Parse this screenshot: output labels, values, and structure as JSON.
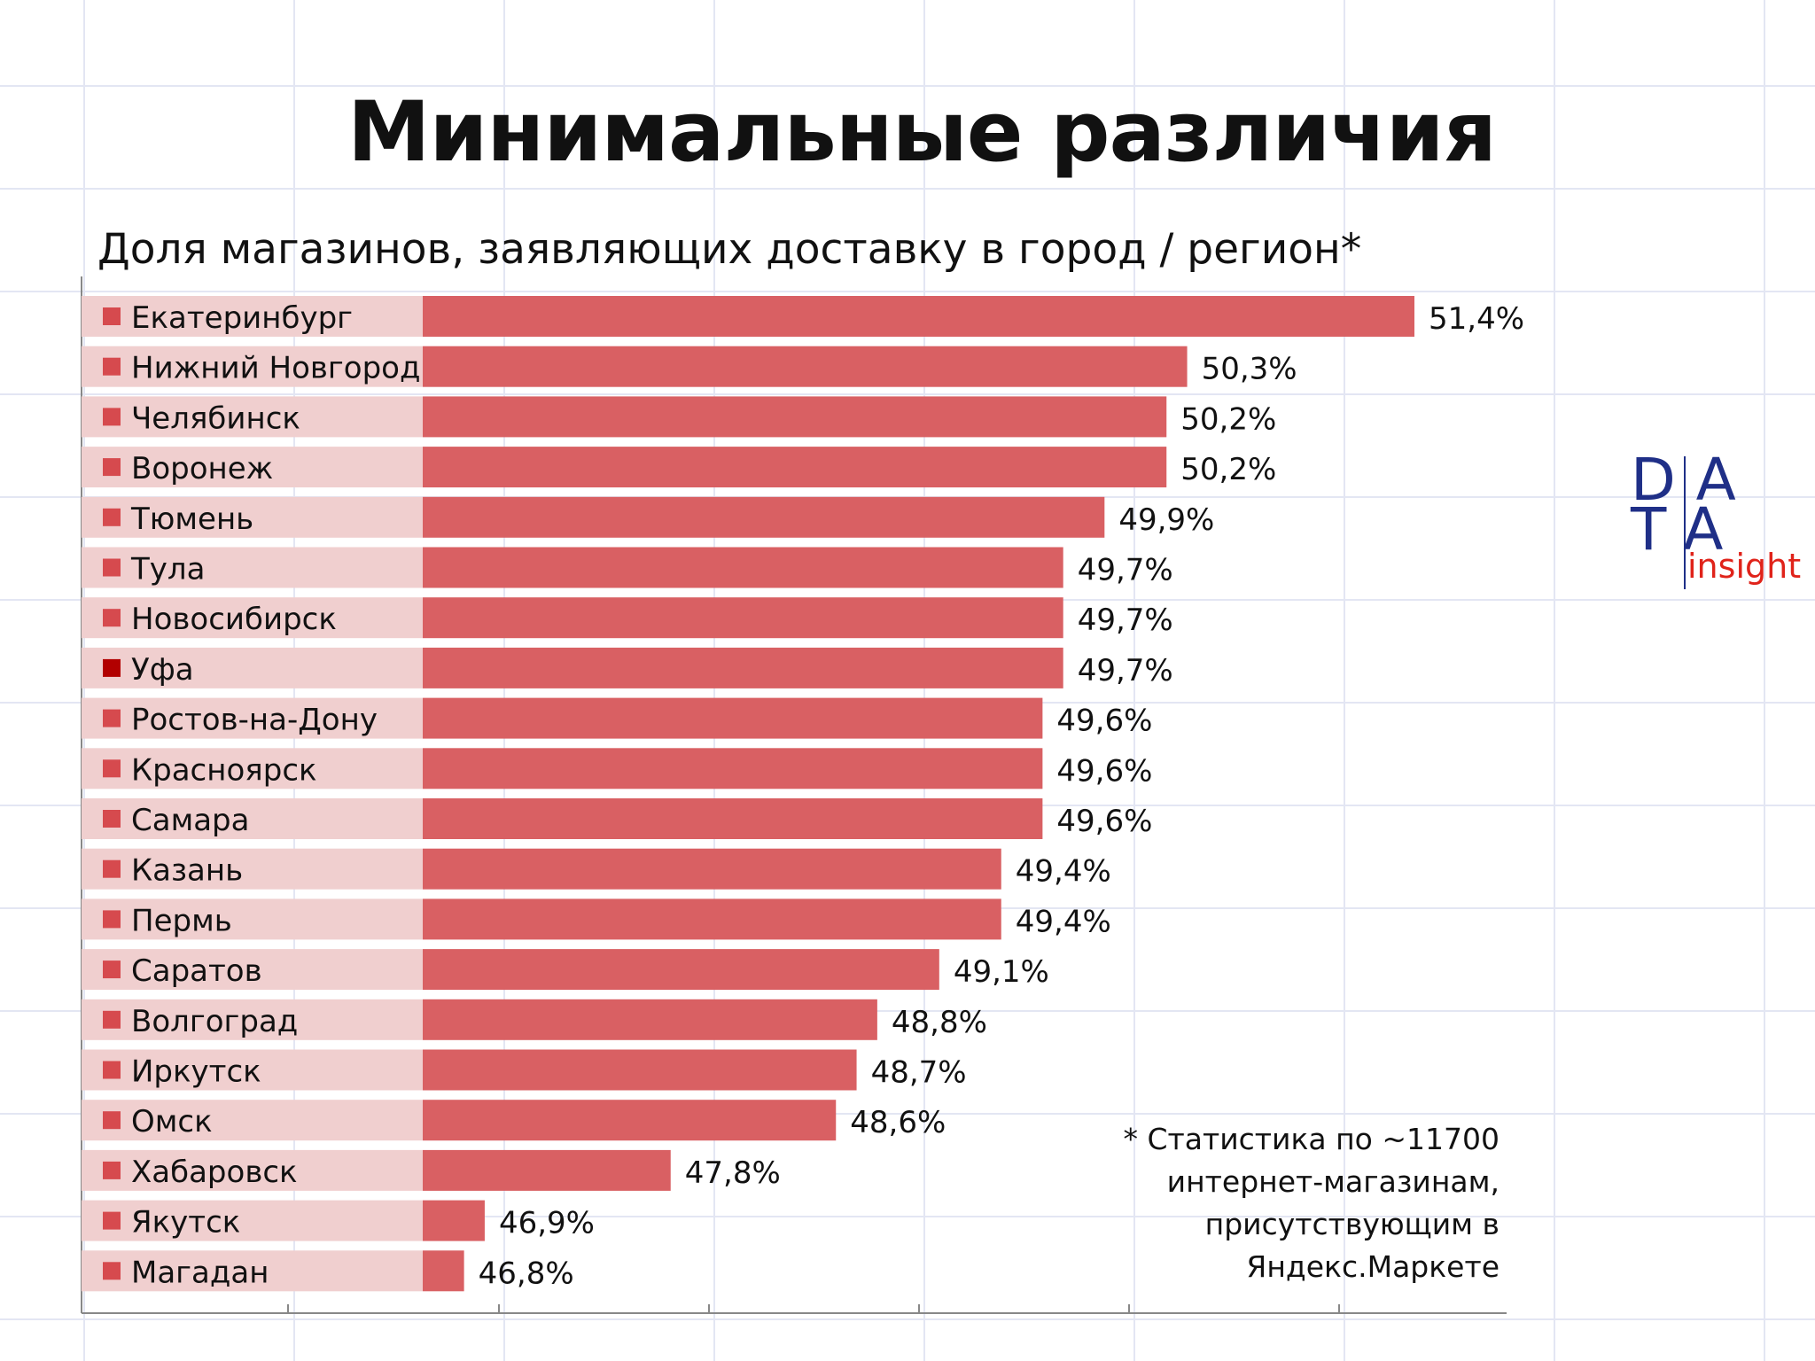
{
  "title": "Минимальные различия",
  "subtitle": "Доля магазинов, заявляющих доставку в город / регион*",
  "footnote": "* Статистика по ~11700 интернет-магазинам, присутствующим в Яндекс.Маркете",
  "logo": {
    "row1": "DA",
    "row2": "TA",
    "sub": "insight"
  },
  "colors": {
    "bar": "#d96063",
    "highlight_marker": "#b20000",
    "label_band": "#f0cfcf",
    "marker": "#d64a4e",
    "grid": "#e3e6f3",
    "axis": "#888888"
  },
  "chart_data": {
    "type": "bar",
    "orientation": "horizontal",
    "categories": [
      "Екатеринбург",
      "Нижний Новгород",
      "Челябинск",
      "Воронеж",
      "Тюмень",
      "Тула",
      "Новосибирск",
      "Уфа",
      "Ростов-на-Дону",
      "Красноярск",
      "Самара",
      "Казань",
      "Пермь",
      "Саратов",
      "Волгоград",
      "Иркутск",
      "Омск",
      "Хабаровск",
      "Якутск",
      "Магадан"
    ],
    "values": [
      51.4,
      50.3,
      50.2,
      50.2,
      49.9,
      49.7,
      49.7,
      49.7,
      49.6,
      49.6,
      49.6,
      49.4,
      49.4,
      49.1,
      48.8,
      48.7,
      48.6,
      47.8,
      46.9,
      46.8
    ],
    "value_labels": [
      "51,4%",
      "50,3%",
      "50,2%",
      "50,2%",
      "49,9%",
      "49,7%",
      "49,7%",
      "49,7%",
      "49,6%",
      "49,6%",
      "49,6%",
      "49,4%",
      "49,4%",
      "49,1%",
      "48,8%",
      "48,7%",
      "48,6%",
      "47,8%",
      "46,9%",
      "46,8%"
    ],
    "highlighted": [
      "Уфа"
    ],
    "title": "Доля магазинов, заявляющих доставку в город / регион*",
    "xlim": [
      46.6,
      51.4
    ],
    "grid": true,
    "legend": "none"
  }
}
